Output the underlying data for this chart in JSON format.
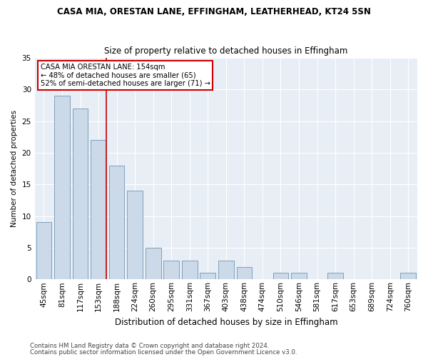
{
  "title": "CASA MIA, ORESTAN LANE, EFFINGHAM, LEATHERHEAD, KT24 5SN",
  "subtitle": "Size of property relative to detached houses in Effingham",
  "xlabel": "Distribution of detached houses by size in Effingham",
  "ylabel": "Number of detached properties",
  "categories": [
    "45sqm",
    "81sqm",
    "117sqm",
    "153sqm",
    "188sqm",
    "224sqm",
    "260sqm",
    "295sqm",
    "331sqm",
    "367sqm",
    "403sqm",
    "438sqm",
    "474sqm",
    "510sqm",
    "546sqm",
    "581sqm",
    "617sqm",
    "653sqm",
    "689sqm",
    "724sqm",
    "760sqm"
  ],
  "values": [
    9,
    29,
    27,
    22,
    18,
    14,
    5,
    3,
    3,
    1,
    3,
    2,
    0,
    1,
    1,
    0,
    1,
    0,
    0,
    0,
    1
  ],
  "bar_color": "#ccd9e8",
  "bar_edge_color": "#7fa0bc",
  "ref_line_index": 3,
  "annotation_line1": "CASA MIA ORESTAN LANE: 154sqm",
  "annotation_line2": "← 48% of detached houses are smaller (65)",
  "annotation_line3": "52% of semi-detached houses are larger (71) →",
  "annotation_box_color": "#ffffff",
  "annotation_box_edge_color": "#cc0000",
  "ref_line_color": "#cc0000",
  "ylim": [
    0,
    35
  ],
  "yticks": [
    0,
    5,
    10,
    15,
    20,
    25,
    30,
    35
  ],
  "bg_color": "#e8eef5",
  "grid_color": "#ffffff",
  "footer1": "Contains HM Land Registry data © Crown copyright and database right 2024.",
  "footer2": "Contains public sector information licensed under the Open Government Licence v3.0."
}
